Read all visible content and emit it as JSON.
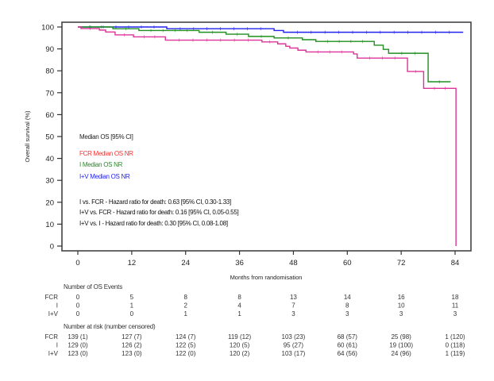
{
  "chart_data": {
    "type": "line",
    "subtype": "kaplan-meier",
    "title": "",
    "xlabel": "Months from randomisation",
    "ylabel": "Overall survival (%)",
    "xlim": [
      0,
      84
    ],
    "ylim": [
      0,
      100
    ],
    "x_ticks": [
      0,
      12,
      24,
      36,
      48,
      60,
      72,
      84
    ],
    "y_ticks": [
      0,
      10,
      20,
      30,
      40,
      50,
      60,
      70,
      80,
      90,
      100
    ],
    "grid": false,
    "series": [
      {
        "name": "I+V",
        "color": "#2222ee",
        "x": [
          0,
          19.8,
          43.7,
          45.8,
          85.8
        ],
        "y": [
          100,
          99.2,
          98.4,
          97.6,
          97.6
        ]
      },
      {
        "name": "I",
        "color": "#1f8f1f",
        "x": [
          0,
          7.8,
          13.6,
          27.0,
          33.0,
          38.0,
          43.7,
          50.0,
          53.0,
          66.0,
          68.0,
          69.2,
          78.0,
          83.0
        ],
        "y": [
          100,
          99.2,
          98.4,
          97.6,
          96.7,
          95.7,
          95.0,
          94.2,
          93.4,
          91.7,
          89.8,
          88.0,
          75.0,
          75.0
        ]
      },
      {
        "name": "FCR",
        "color": "#dd3399",
        "x": [
          0,
          0.7,
          4.8,
          6.2,
          8.3,
          12.4,
          19.5,
          41.0,
          44.5,
          46.3,
          47.2,
          49.0,
          50.8,
          61.4,
          62.2,
          73.4,
          77.0,
          84.2
        ],
        "y": [
          100,
          99.3,
          98.6,
          97.7,
          96.4,
          95.5,
          94.0,
          93.2,
          92.3,
          91.2,
          90.4,
          89.4,
          88.6,
          87.7,
          85.8,
          79.7,
          72.0,
          0
        ]
      }
    ],
    "annotations": {
      "median_header": "Median OS [95% CI]",
      "medians": [
        {
          "text": "FCR Median OS NR",
          "color": "#ff2a2a"
        },
        {
          "text": "I Median OS NR",
          "color": "#1f8f1f"
        },
        {
          "text": "I+V Median OS NR",
          "color": "#2222ee"
        }
      ],
      "hazard_ratios": [
        "I vs. FCR - Hazard ratio for death: 0.63 [95% CI, 0.30-1.33]",
        "I+V vs. FCR - Hazard ratio for death: 0.16 [95% CI, 0.05-0.55]",
        "I+V vs. I - Hazard ratio for death: 0.30 [95% CI, 0.08-1.08]"
      ]
    },
    "events_table": {
      "title": "Number of OS Events",
      "rows": [
        {
          "label": "FCR",
          "values": [
            "0",
            "5",
            "8",
            "8",
            "13",
            "14",
            "16",
            "18"
          ]
        },
        {
          "label": "I",
          "values": [
            "0",
            "1",
            "2",
            "4",
            "7",
            "8",
            "10",
            "11"
          ]
        },
        {
          "label": "I+V",
          "values": [
            "0",
            "0",
            "1",
            "1",
            "3",
            "3",
            "3",
            "3"
          ]
        }
      ]
    },
    "risk_table": {
      "title": "Number at risk (number censored)",
      "rows": [
        {
          "label": "FCR",
          "values": [
            "139 (1)",
            "127 (7)",
            "124 (7)",
            "119 (12)",
            "103 (23)",
            "68 (57)",
            "25 (98)",
            "1 (120)"
          ]
        },
        {
          "label": "I",
          "values": [
            "129 (0)",
            "126 (2)",
            "122 (5)",
            "120 (5)",
            "95 (27)",
            "60 (61)",
            "19 (100)",
            "0 (118)"
          ]
        },
        {
          "label": "I+V",
          "values": [
            "123 (0)",
            "123 (0)",
            "122 (0)",
            "120 (2)",
            "103 (17)",
            "64 (56)",
            "24 (96)",
            "1 (119)"
          ]
        }
      ]
    }
  }
}
